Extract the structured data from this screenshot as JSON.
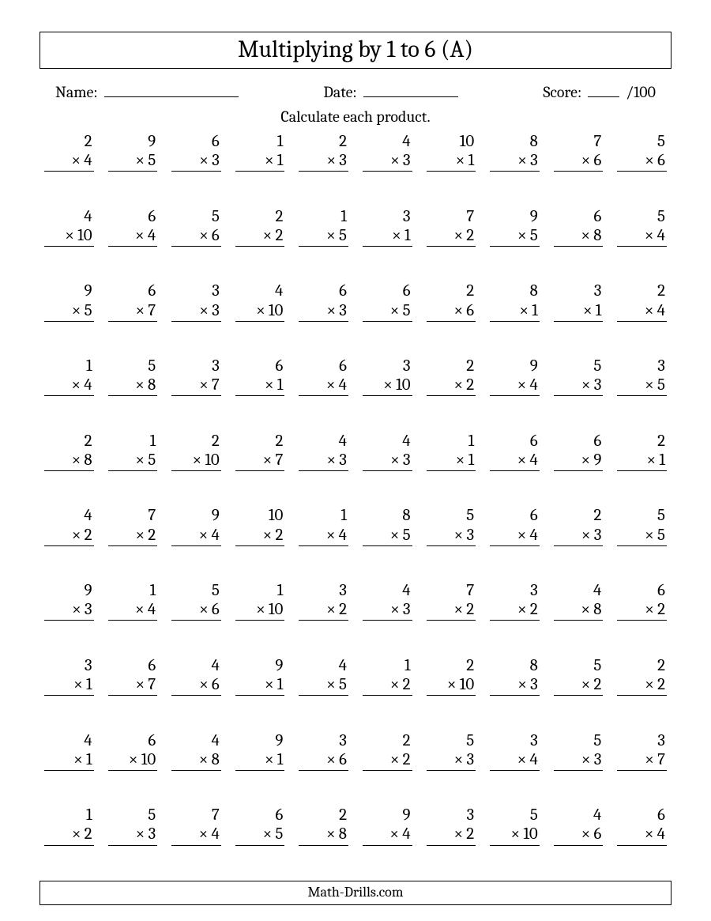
{
  "title": "Multiplying by 1 to 6 (A)",
  "meta": {
    "name_label": "Name:",
    "date_label": "Date:",
    "score_label": "Score:",
    "score_suffix": "/100",
    "name_line_width": 170,
    "date_line_width": 120,
    "score_line_width": 40
  },
  "instruction": "Calculate each product.",
  "operator": "×",
  "problems": [
    [
      [
        2,
        4
      ],
      [
        9,
        5
      ],
      [
        6,
        3
      ],
      [
        1,
        1
      ],
      [
        2,
        3
      ],
      [
        4,
        3
      ],
      [
        10,
        1
      ],
      [
        8,
        3
      ],
      [
        7,
        6
      ],
      [
        5,
        6
      ]
    ],
    [
      [
        4,
        10
      ],
      [
        6,
        4
      ],
      [
        5,
        6
      ],
      [
        2,
        2
      ],
      [
        1,
        5
      ],
      [
        3,
        1
      ],
      [
        7,
        2
      ],
      [
        9,
        5
      ],
      [
        6,
        8
      ],
      [
        5,
        4
      ]
    ],
    [
      [
        9,
        5
      ],
      [
        6,
        7
      ],
      [
        3,
        3
      ],
      [
        4,
        10
      ],
      [
        6,
        3
      ],
      [
        6,
        5
      ],
      [
        2,
        6
      ],
      [
        8,
        1
      ],
      [
        3,
        1
      ],
      [
        2,
        4
      ]
    ],
    [
      [
        1,
        4
      ],
      [
        5,
        8
      ],
      [
        3,
        7
      ],
      [
        6,
        1
      ],
      [
        6,
        4
      ],
      [
        3,
        10
      ],
      [
        2,
        2
      ],
      [
        9,
        4
      ],
      [
        5,
        3
      ],
      [
        3,
        5
      ]
    ],
    [
      [
        2,
        8
      ],
      [
        1,
        5
      ],
      [
        2,
        10
      ],
      [
        2,
        7
      ],
      [
        4,
        3
      ],
      [
        4,
        3
      ],
      [
        1,
        1
      ],
      [
        6,
        4
      ],
      [
        6,
        9
      ],
      [
        2,
        1
      ]
    ],
    [
      [
        4,
        2
      ],
      [
        7,
        2
      ],
      [
        9,
        4
      ],
      [
        10,
        2
      ],
      [
        1,
        4
      ],
      [
        8,
        5
      ],
      [
        5,
        3
      ],
      [
        6,
        4
      ],
      [
        2,
        3
      ],
      [
        5,
        5
      ]
    ],
    [
      [
        9,
        3
      ],
      [
        1,
        4
      ],
      [
        5,
        6
      ],
      [
        1,
        10
      ],
      [
        3,
        2
      ],
      [
        4,
        3
      ],
      [
        7,
        2
      ],
      [
        3,
        2
      ],
      [
        4,
        8
      ],
      [
        6,
        2
      ]
    ],
    [
      [
        3,
        1
      ],
      [
        6,
        7
      ],
      [
        4,
        6
      ],
      [
        9,
        1
      ],
      [
        4,
        5
      ],
      [
        1,
        2
      ],
      [
        2,
        10
      ],
      [
        8,
        3
      ],
      [
        5,
        2
      ],
      [
        2,
        2
      ]
    ],
    [
      [
        4,
        1
      ],
      [
        6,
        10
      ],
      [
        4,
        8
      ],
      [
        9,
        1
      ],
      [
        3,
        6
      ],
      [
        2,
        2
      ],
      [
        5,
        3
      ],
      [
        3,
        4
      ],
      [
        5,
        3
      ],
      [
        3,
        7
      ]
    ],
    [
      [
        1,
        2
      ],
      [
        5,
        3
      ],
      [
        7,
        4
      ],
      [
        6,
        5
      ],
      [
        2,
        8
      ],
      [
        9,
        4
      ],
      [
        3,
        2
      ],
      [
        5,
        10
      ],
      [
        4,
        6
      ],
      [
        6,
        4
      ]
    ]
  ],
  "footer": "Math-Drills.com",
  "style": {
    "text_color": "#000000",
    "background_color": "#ffffff",
    "border_color": "#000000",
    "title_fontsize": 30,
    "meta_fontsize": 20,
    "instruction_fontsize": 20,
    "problem_fontsize": 21,
    "footer_fontsize": 18,
    "columns": 10,
    "rows": 10,
    "font_family": "Cambria/Georgia serif"
  }
}
